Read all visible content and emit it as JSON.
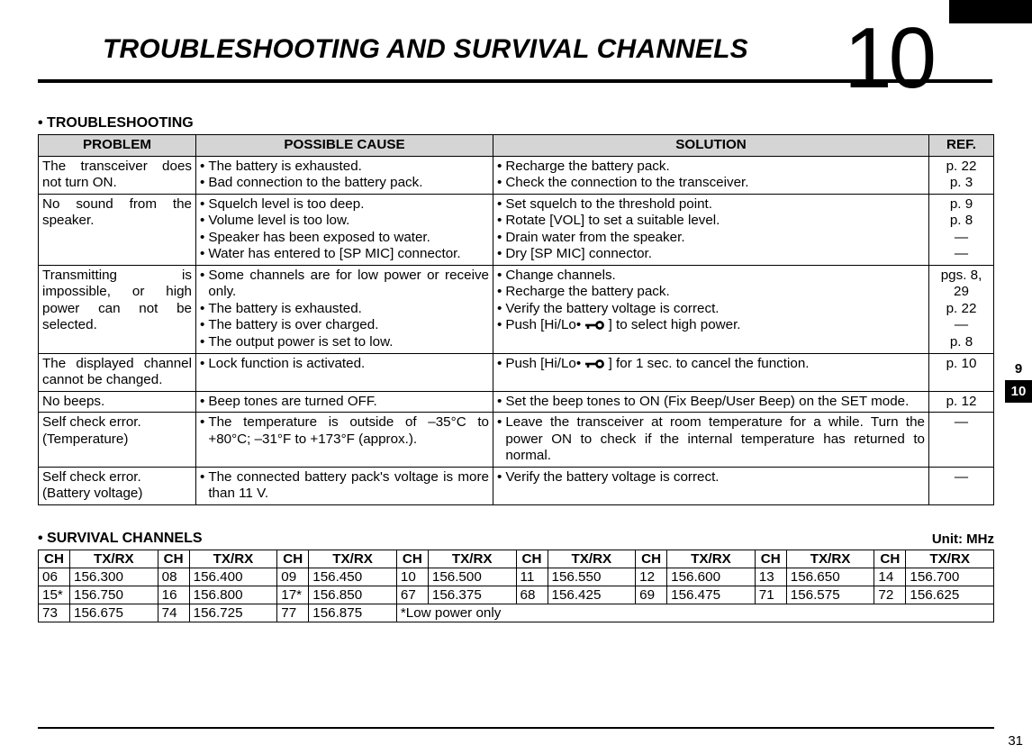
{
  "header": {
    "chapter_num": "10",
    "title": "TROUBLESHOOTING AND SURVIVAL CHANNELS"
  },
  "troubleshooting": {
    "section_label": "• TROUBLESHOOTING",
    "columns": [
      "PROBLEM",
      "POSSIBLE CAUSE",
      "SOLUTION",
      "REF."
    ],
    "rows": [
      {
        "problem": "The transceiver does not turn ON.",
        "cause": [
          "The battery is exhausted.",
          "Bad connection to the battery pack."
        ],
        "solution": [
          "Recharge the battery pack.",
          "Check the connection to the transceiver."
        ],
        "ref": [
          "p. 22",
          "p. 3"
        ]
      },
      {
        "problem": "No sound from the speaker.",
        "cause": [
          "Squelch level is too deep.",
          "Volume level is too low.",
          "Speaker has been exposed to water.",
          "Water has entered to [SP MIC] connector."
        ],
        "solution": [
          "Set squelch to the threshold point.",
          "Rotate [VOL] to set a suitable level.",
          "Drain water from the speaker.",
          "Dry [SP MIC] connector."
        ],
        "ref": [
          "p. 9",
          "p. 8",
          "—",
          "—"
        ]
      },
      {
        "problem": "Transmitting is impossible, or high power can not be selected.",
        "cause": [
          "Some channels are for low power or receive only.",
          "The battery is exhausted.",
          "The battery is over charged.",
          "The output power is set to low."
        ],
        "solution": [
          "Change channels.",
          "",
          "Recharge the battery pack.",
          "Verify the battery voltage is correct.",
          "Push [Hi/Lo• KEY ] to select high power."
        ],
        "solution_has_key_icon_at": 4,
        "ref": [
          "pgs. 8, 29",
          "p. 22",
          "—",
          "p. 8"
        ]
      },
      {
        "problem": "The displayed channel cannot be changed.",
        "cause": [
          "Lock function is activated."
        ],
        "solution": [
          "Push [Hi/Lo• KEY ] for 1 sec. to cancel the function."
        ],
        "solution_has_key_icon_at": 0,
        "ref": [
          "p. 10"
        ]
      },
      {
        "problem": "No beeps.",
        "cause": [
          "Beep tones are turned OFF."
        ],
        "solution": [
          "Set the beep tones to ON (Fix Beep/User Beep) on the SET mode."
        ],
        "ref": [
          "p. 12"
        ]
      },
      {
        "problem": "Self check error.\n(Temperature)",
        "cause": [
          "The temperature is outside of –35°C to +80°C; –31°F to +173°F (approx.)."
        ],
        "solution": [
          "Leave the transceiver at room temperature for a while. Turn the power ON to check if the internal temperature has returned to normal."
        ],
        "ref": [
          "—"
        ]
      },
      {
        "problem": "Self check error.\n(Battery voltage)",
        "cause": [
          "The connected battery pack's voltage is more than 11 V."
        ],
        "solution": [
          "Verify the battery voltage is correct."
        ],
        "ref": [
          "—"
        ]
      }
    ]
  },
  "survival": {
    "section_label": "• SURVIVAL CHANNELS",
    "unit_label": "Unit: MHz",
    "header_cell_ch": "CH",
    "header_cell_tx": "TX/RX",
    "pairs": [
      [
        "06",
        "156.300",
        "08",
        "156.400",
        "09",
        "156.450",
        "10",
        "156.500",
        "11",
        "156.550",
        "12",
        "156.600",
        "13",
        "156.650",
        "14",
        "156.700"
      ],
      [
        "15*",
        "156.750",
        "16",
        "156.800",
        "17*",
        "156.850",
        "67",
        "156.375",
        "68",
        "156.425",
        "69",
        "156.475",
        "71",
        "156.575",
        "72",
        "156.625"
      ],
      [
        "73",
        "156.675",
        "74",
        "156.725",
        "77",
        "156.875"
      ]
    ],
    "footnote": "*Low power only"
  },
  "side_tabs": {
    "inactive": "9",
    "active": "10"
  },
  "page_number": "31"
}
